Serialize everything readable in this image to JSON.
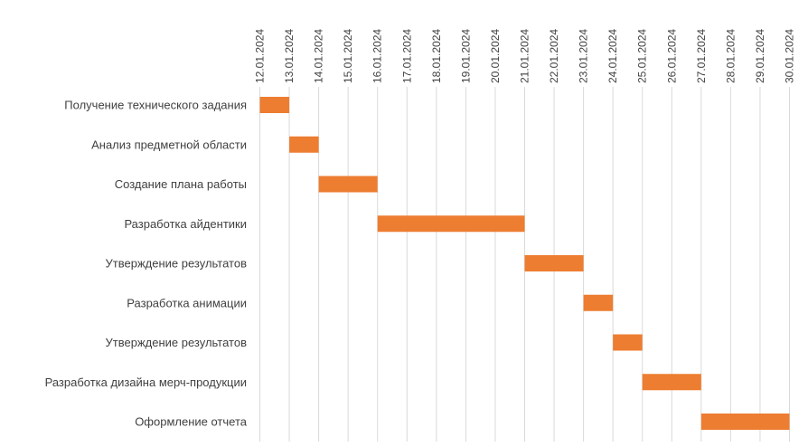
{
  "chart_data": {
    "type": "gantt",
    "title": "",
    "xlabel": "",
    "ylabel": "",
    "x_axis_position": "top",
    "x_ticks": [
      "12.01.2024",
      "13.01.2024",
      "14.01.2024",
      "15.01.2024",
      "16.01.2024",
      "17.01.2024",
      "18.01.2024",
      "19.01.2024",
      "20.01.2024",
      "21.01.2024",
      "22.01.2024",
      "23.01.2024",
      "24.01.2024",
      "25.01.2024",
      "26.01.2024",
      "27.01.2024",
      "28.01.2024",
      "29.01.2024",
      "30.01.2024"
    ],
    "grid": true,
    "bar_color": "#ED7D31",
    "tasks": [
      {
        "name": "Получение технического задания",
        "start": "12.01.2024",
        "end": "13.01.2024"
      },
      {
        "name": "Анализ предметной области",
        "start": "13.01.2024",
        "end": "14.01.2024"
      },
      {
        "name": "Создание плана работы",
        "start": "14.01.2024",
        "end": "16.01.2024"
      },
      {
        "name": "Разработка айдентики",
        "start": "16.01.2024",
        "end": "21.01.2024"
      },
      {
        "name": "Утверждение результатов",
        "start": "21.01.2024",
        "end": "23.01.2024"
      },
      {
        "name": "Разработка анимации",
        "start": "23.01.2024",
        "end": "24.01.2024"
      },
      {
        "name": "Утверждение результатов",
        "start": "24.01.2024",
        "end": "25.01.2024"
      },
      {
        "name": "Разработка дизайна мерч-продукции",
        "start": "25.01.2024",
        "end": "27.01.2024"
      },
      {
        "name": "Оформление отчета",
        "start": "27.01.2024",
        "end": "30.01.2024"
      }
    ]
  }
}
